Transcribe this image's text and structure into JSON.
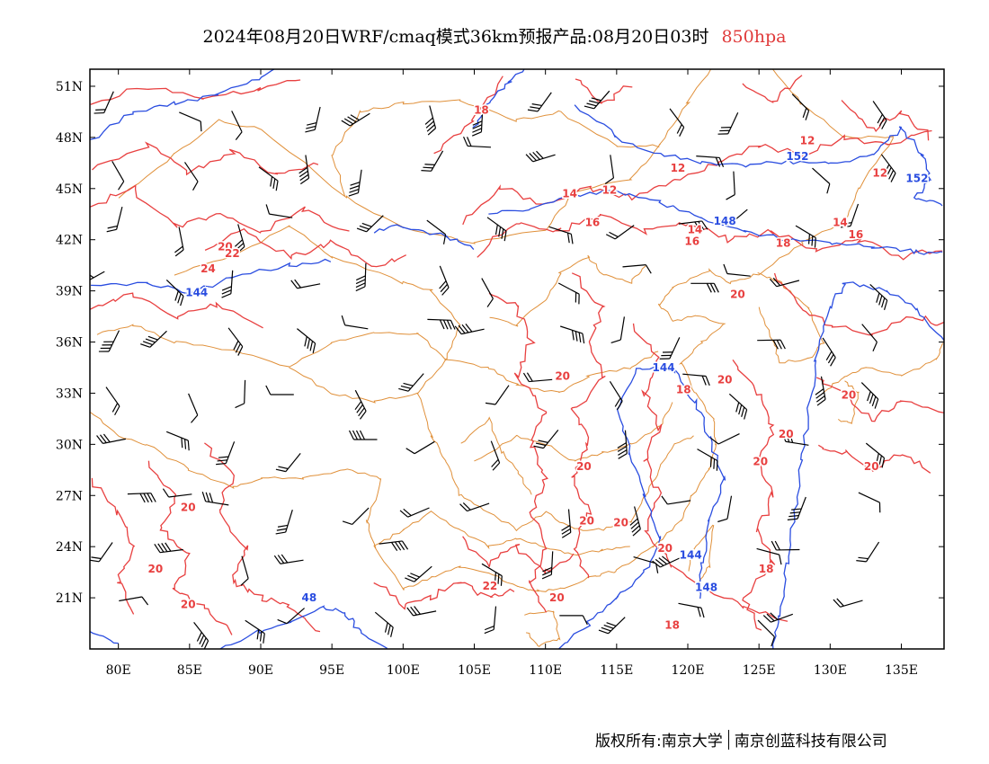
{
  "title": {
    "main": "2024年08月20日WRF/cmaq模式36km预报产品:08月20日03时",
    "level": "850hpa",
    "level_color": "#e03a3a"
  },
  "map": {
    "lon_range": [
      78,
      138
    ],
    "lat_range": [
      18,
      52
    ],
    "lon_ticks": [
      80,
      85,
      90,
      95,
      100,
      105,
      110,
      115,
      120,
      125,
      130,
      135
    ],
    "lat_ticks": [
      21,
      24,
      27,
      30,
      33,
      36,
      39,
      42,
      45,
      48,
      51
    ],
    "lon_tick_labels": [
      "80E",
      "85E",
      "90E",
      "95E",
      "100E",
      "105E",
      "110E",
      "115E",
      "120E",
      "125E",
      "130E",
      "135E"
    ],
    "lat_tick_labels": [
      "21N",
      "24N",
      "27N",
      "30N",
      "33N",
      "36N",
      "39N",
      "42N",
      "45N",
      "48N",
      "51N"
    ],
    "colors": {
      "temperature_contour": "#e84040",
      "height_contour": "#2a4de0",
      "boundary": "#e0903a",
      "wind_barb": "#000000"
    },
    "temperature_labels": [
      {
        "text": "18",
        "lon": 105.5,
        "lat": 49.6
      },
      {
        "text": "12",
        "lon": 128.4,
        "lat": 47.8
      },
      {
        "text": "12",
        "lon": 133.5,
        "lat": 45.9
      },
      {
        "text": "12",
        "lon": 119.3,
        "lat": 46.2
      },
      {
        "text": "12",
        "lon": 114.5,
        "lat": 44.9
      },
      {
        "text": "14",
        "lon": 111.7,
        "lat": 44.7
      },
      {
        "text": "16",
        "lon": 113.3,
        "lat": 43.0
      },
      {
        "text": "14",
        "lon": 120.5,
        "lat": 42.6
      },
      {
        "text": "16",
        "lon": 120.3,
        "lat": 41.9
      },
      {
        "text": "14",
        "lon": 130.7,
        "lat": 43.0
      },
      {
        "text": "16",
        "lon": 131.8,
        "lat": 42.3
      },
      {
        "text": "18",
        "lon": 126.7,
        "lat": 41.8
      },
      {
        "text": "20",
        "lon": 87.5,
        "lat": 41.6
      },
      {
        "text": "22",
        "lon": 88.0,
        "lat": 41.2
      },
      {
        "text": "24",
        "lon": 86.3,
        "lat": 40.3
      },
      {
        "text": "20",
        "lon": 123.5,
        "lat": 38.8
      },
      {
        "text": "20",
        "lon": 111.2,
        "lat": 34.0
      },
      {
        "text": "20",
        "lon": 122.6,
        "lat": 33.8
      },
      {
        "text": "18",
        "lon": 119.7,
        "lat": 33.2
      },
      {
        "text": "20",
        "lon": 131.3,
        "lat": 32.9
      },
      {
        "text": "20",
        "lon": 126.9,
        "lat": 30.6
      },
      {
        "text": "20",
        "lon": 125.1,
        "lat": 29.0
      },
      {
        "text": "20",
        "lon": 132.9,
        "lat": 28.7
      },
      {
        "text": "20",
        "lon": 112.7,
        "lat": 28.7
      },
      {
        "text": "20",
        "lon": 84.9,
        "lat": 26.3
      },
      {
        "text": "20",
        "lon": 112.9,
        "lat": 25.5
      },
      {
        "text": "20",
        "lon": 115.3,
        "lat": 25.4
      },
      {
        "text": "20",
        "lon": 118.4,
        "lat": 23.9
      },
      {
        "text": "20",
        "lon": 82.6,
        "lat": 22.7
      },
      {
        "text": "20",
        "lon": 84.9,
        "lat": 20.6
      },
      {
        "text": "22",
        "lon": 106.1,
        "lat": 21.7
      },
      {
        "text": "20",
        "lon": 110.8,
        "lat": 21.0
      },
      {
        "text": "18",
        "lon": 125.5,
        "lat": 22.7
      },
      {
        "text": "18",
        "lon": 118.9,
        "lat": 19.4
      }
    ],
    "height_labels": [
      {
        "text": "152",
        "lon": 127.7,
        "lat": 46.9
      },
      {
        "text": "152",
        "lon": 136.1,
        "lat": 45.6
      },
      {
        "text": "148",
        "lon": 122.6,
        "lat": 43.1
      },
      {
        "text": "144",
        "lon": 85.5,
        "lat": 38.9
      },
      {
        "text": "144",
        "lon": 118.3,
        "lat": 34.5
      },
      {
        "text": "144",
        "lon": 120.2,
        "lat": 23.5
      },
      {
        "text": "148",
        "lon": 121.3,
        "lat": 21.6
      },
      {
        "text": "48",
        "lon": 93.4,
        "lat": 21.0
      }
    ]
  },
  "credit": {
    "left": "版权所有:南京大学",
    "right": "南京创蓝科技有限公司"
  }
}
